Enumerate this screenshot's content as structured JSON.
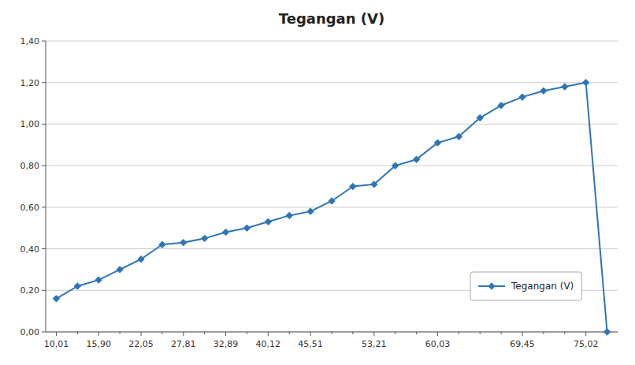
{
  "chart_data": {
    "type": "line",
    "title": "Tegangan (V)",
    "categories": [
      "10,01",
      null,
      "15,90",
      null,
      "22,05",
      null,
      "27,81",
      null,
      "32,89",
      null,
      "40,12",
      null,
      "45,51",
      null,
      null,
      "53,21",
      null,
      null,
      "60,03",
      null,
      null,
      null,
      "69,45",
      null,
      null,
      "75,02",
      null
    ],
    "series": [
      {
        "name": "Tegangan (V)",
        "color": "#2e75b6",
        "marker": "diamond",
        "values": [
          0.16,
          0.22,
          0.25,
          0.3,
          0.35,
          0.42,
          0.43,
          0.45,
          0.48,
          0.5,
          0.53,
          0.56,
          0.58,
          0.63,
          0.7,
          0.71,
          0.8,
          0.83,
          0.91,
          0.94,
          1.03,
          1.09,
          1.13,
          1.16,
          1.18,
          1.2,
          0.0
        ]
      }
    ],
    "ylim": [
      0.0,
      1.4
    ],
    "yticks": [
      {
        "value": 0.0,
        "label": "0,00"
      },
      {
        "value": 0.2,
        "label": "0,20"
      },
      {
        "value": 0.4,
        "label": "0,40"
      },
      {
        "value": 0.6,
        "label": "0,60"
      },
      {
        "value": 0.8,
        "label": "0,80"
      },
      {
        "value": 1.0,
        "label": "1,00"
      },
      {
        "value": 1.2,
        "label": "1,20"
      },
      {
        "value": 1.4,
        "label": "1,40"
      }
    ],
    "grid": true,
    "legend": "lower right"
  }
}
